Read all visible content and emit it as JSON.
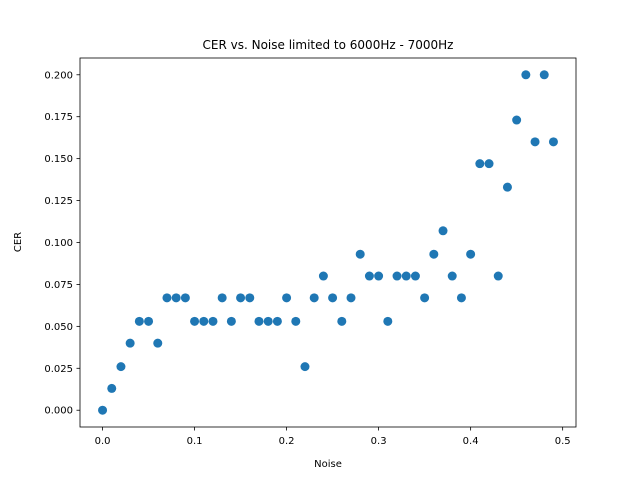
{
  "chart_data": {
    "type": "scatter",
    "title": "CER vs. Noise limited to 6000Hz - 7000Hz",
    "xlabel": "Noise",
    "ylabel": "CER",
    "xlim": [
      -0.0245,
      0.5145
    ],
    "ylim": [
      -0.01,
      0.21
    ],
    "xticks": [
      0.0,
      0.1,
      0.2,
      0.3,
      0.4,
      0.5
    ],
    "xtick_labels": [
      "0.0",
      "0.1",
      "0.2",
      "0.3",
      "0.4",
      "0.5"
    ],
    "yticks": [
      0.0,
      0.025,
      0.05,
      0.075,
      0.1,
      0.125,
      0.15,
      0.175,
      0.2
    ],
    "ytick_labels": [
      "0.000",
      "0.025",
      "0.050",
      "0.075",
      "0.100",
      "0.125",
      "0.150",
      "0.175",
      "0.200"
    ],
    "grid": false,
    "marker_color": "#1f77b4",
    "x": [
      0.0,
      0.01,
      0.02,
      0.03,
      0.04,
      0.05,
      0.06,
      0.07,
      0.08,
      0.09,
      0.1,
      0.11,
      0.12,
      0.13,
      0.14,
      0.15,
      0.16,
      0.17,
      0.18,
      0.19,
      0.2,
      0.21,
      0.22,
      0.23,
      0.24,
      0.25,
      0.26,
      0.27,
      0.28,
      0.29,
      0.3,
      0.31,
      0.32,
      0.33,
      0.34,
      0.35,
      0.36,
      0.37,
      0.38,
      0.39,
      0.4,
      0.41,
      0.42,
      0.43,
      0.44,
      0.45,
      0.46,
      0.47,
      0.48,
      0.49
    ],
    "y": [
      0.0,
      0.013,
      0.026,
      0.04,
      0.053,
      0.053,
      0.04,
      0.067,
      0.067,
      0.067,
      0.053,
      0.053,
      0.053,
      0.067,
      0.053,
      0.067,
      0.067,
      0.053,
      0.053,
      0.053,
      0.067,
      0.053,
      0.026,
      0.067,
      0.08,
      0.067,
      0.053,
      0.067,
      0.093,
      0.08,
      0.08,
      0.053,
      0.08,
      0.08,
      0.08,
      0.067,
      0.093,
      0.107,
      0.08,
      0.067,
      0.093,
      0.147,
      0.147,
      0.08,
      0.133,
      0.173,
      0.2,
      0.16,
      0.2,
      0.16
    ]
  }
}
